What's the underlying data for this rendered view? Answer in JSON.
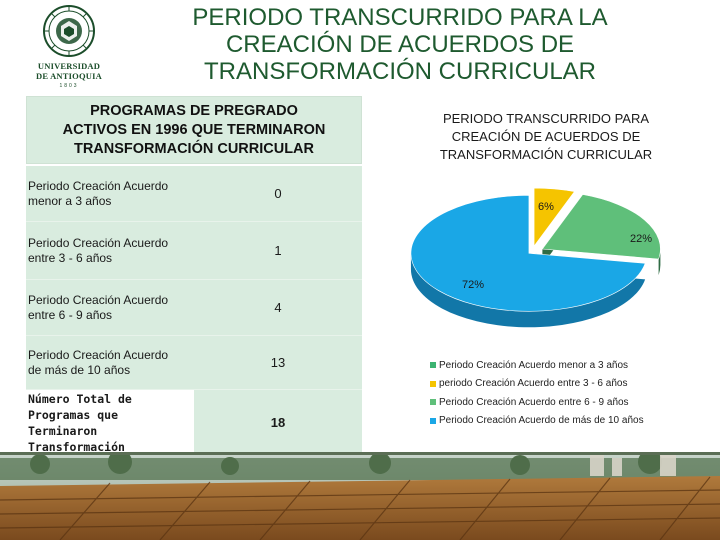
{
  "logo": {
    "line1": "UNIVERSIDAD",
    "line2": "DE ANTIOQUIA",
    "year": "1803",
    "color": "#1b4d2a"
  },
  "slide": {
    "title_lines": [
      "PERIODO TRANSCURRIDO PARA LA",
      "CREACIÓN DE ACUERDOS DE",
      "TRANSFORMACIÓN CURRICULAR"
    ],
    "title_color": "#1e5a2f"
  },
  "table": {
    "header_lines": [
      "PROGRAMAS DE PREGRADO",
      "ACTIVOS EN 1996 QUE TERMINARON",
      "TRANSFORMACIÓN CURRICULAR"
    ],
    "rows": [
      {
        "label_lines": [
          "Periodo Creación Acuerdo",
          "menor a 3 años"
        ],
        "value": "0"
      },
      {
        "label_lines": [
          "Periodo Creación Acuerdo",
          "entre 3 - 6 años"
        ],
        "value": "1"
      },
      {
        "label_lines": [
          "Periodo Creación Acuerdo",
          "entre 6 - 9 años"
        ],
        "value": "4"
      },
      {
        "label_lines": [
          "Periodo Creación Acuerdo",
          "de más de 10 años"
        ],
        "value": "13"
      }
    ],
    "total": {
      "label_lines": [
        "Número Total de",
        "Programas que",
        "Terminaron",
        "Transformación Curricular"
      ],
      "value": "18"
    },
    "bg_color": "#d9ecdf"
  },
  "chart_data": {
    "type": "pie",
    "title_lines": [
      "PERIODO TRANSCURRIDO PARA",
      "CREACIÓN DE ACUERDOS DE",
      "TRANSFORMACIÓN CURRICULAR"
    ],
    "categories": [
      "Periodo Creación Acuerdo menor a 3 años",
      "periodo Creación Acuerdo entre 3 - 6 años",
      "Periodo Creación Acuerdo entre 6 - 9 años",
      "Periodo Creación Acuerdo de más de 10 años"
    ],
    "values": [
      0,
      1,
      4,
      13
    ],
    "data_labels": [
      "",
      "6%",
      "22%",
      "72%"
    ],
    "colors": [
      "#3cb371",
      "#f5c400",
      "#5fbf7a",
      "#1aa7e6"
    ],
    "side_colors": [
      "#2a8a55",
      "#b89200",
      "#2f6b44",
      "#1277a8"
    ],
    "legend_position": "bottom",
    "exploded": true,
    "three_d": true
  }
}
